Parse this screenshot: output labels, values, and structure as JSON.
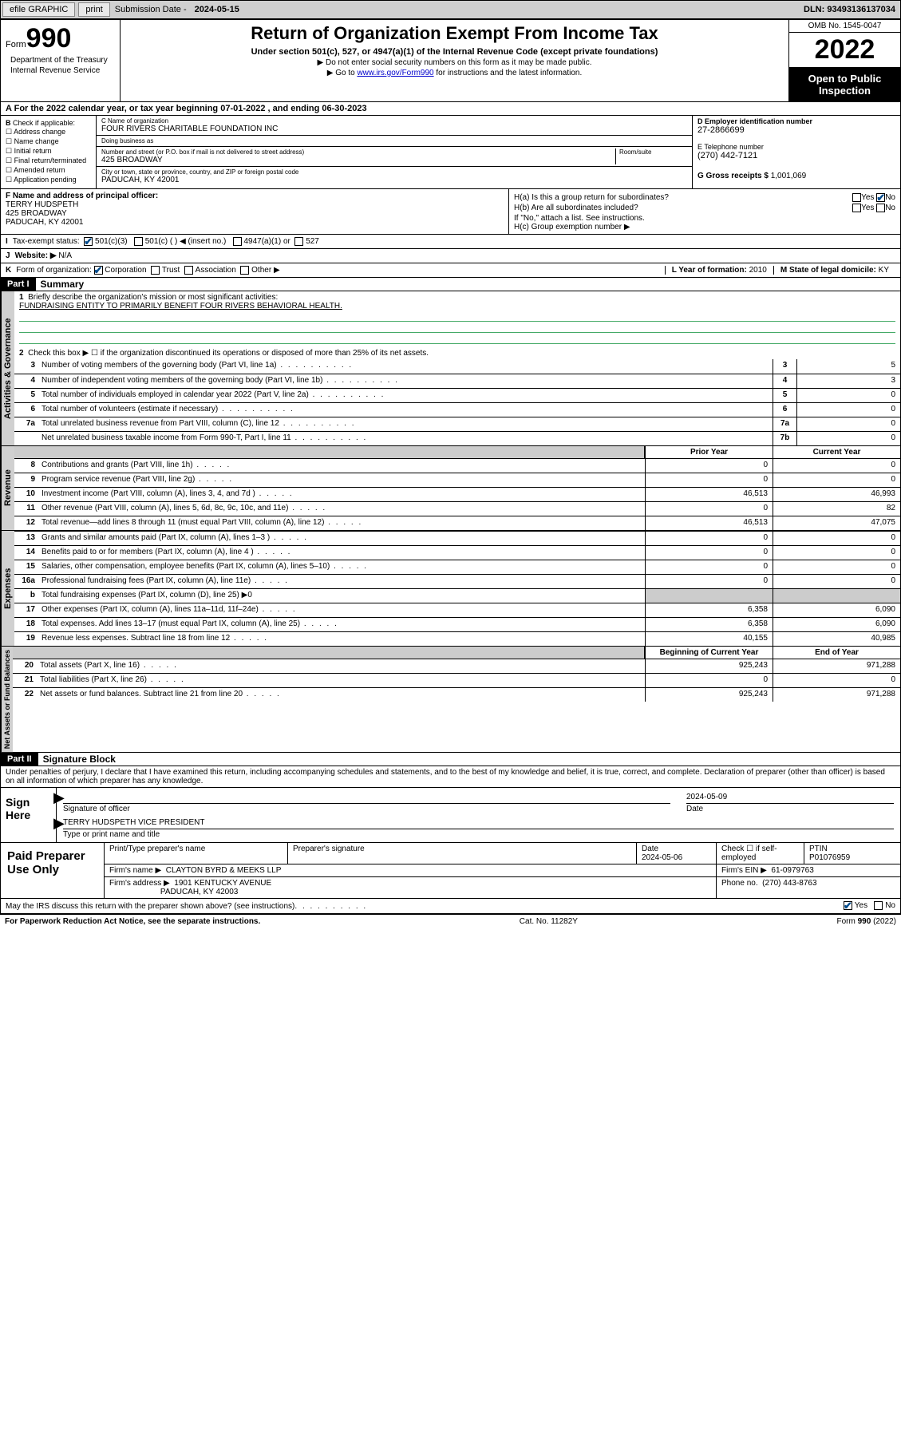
{
  "topbar": {
    "efile": "efile GRAPHIC",
    "print": "print",
    "sub_lbl": "Submission Date -",
    "sub_val": "2024-05-15",
    "dln_lbl": "DLN:",
    "dln_val": "93493136137034"
  },
  "header": {
    "form_word": "Form",
    "form_num": "990",
    "title": "Return of Organization Exempt From Income Tax",
    "subtitle": "Under section 501(c), 527, or 4947(a)(1) of the Internal Revenue Code (except private foundations)",
    "note1": "▶ Do not enter social security numbers on this form as it may be made public.",
    "note2_pre": "▶ Go to ",
    "note2_link": "www.irs.gov/Form990",
    "note2_post": " for instructions and the latest information.",
    "dept": "Department of the Treasury",
    "irs": "Internal Revenue Service",
    "omb": "OMB No. 1545-0047",
    "year": "2022",
    "otp": "Open to Public Inspection"
  },
  "rowA": {
    "text": "For the 2022 calendar year, or tax year beginning 07-01-2022   , and ending 06-30-2023",
    "lead": "A"
  },
  "boxB": {
    "lead": "B",
    "lbl": "Check if applicable:",
    "items": [
      "Address change",
      "Name change",
      "Initial return",
      "Final return/terminated",
      "Amended return",
      "Application pending"
    ]
  },
  "boxC": {
    "name_lbl": "C Name of organization",
    "name": "FOUR RIVERS CHARITABLE FOUNDATION INC",
    "dba_lbl": "Doing business as",
    "dba": "",
    "street_lbl": "Number and street (or P.O. box if mail is not delivered to street address)",
    "room_lbl": "Room/suite",
    "street": "425 BROADWAY",
    "city_lbl": "City or town, state or province, country, and ZIP or foreign postal code",
    "city": "PADUCAH, KY  42001"
  },
  "boxD": {
    "d_lbl": "D Employer identification number",
    "d_val": "27-2866699",
    "e_lbl": "E Telephone number",
    "e_val": "(270) 442-7121",
    "g_lbl": "G Gross receipts $",
    "g_val": "1,001,069"
  },
  "boxF": {
    "lbl": "F  Name and address of principal officer:",
    "name": "TERRY HUDSPETH",
    "street": "425 BROADWAY",
    "city": "PADUCAH, KY  42001"
  },
  "boxH": {
    "a_lbl": "H(a)  Is this a group return for subordinates?",
    "b_lbl": "H(b)  Are all subordinates included?",
    "b_note": "If \"No,\" attach a list. See instructions.",
    "c_lbl": "H(c)  Group exemption number ▶",
    "yes": "Yes",
    "no": "No"
  },
  "rowI": {
    "lead": "I",
    "lbl": "Tax-exempt status:",
    "a": "501(c)(3)",
    "b": "501(c) (  ) ◀ (insert no.)",
    "c": "4947(a)(1) or",
    "d": "527"
  },
  "rowJ": {
    "lead": "J",
    "lbl": "Website: ▶",
    "val": "N/A"
  },
  "rowK": {
    "lead": "K",
    "lbl": "Form of organization:",
    "opts": [
      "Corporation",
      "Trust",
      "Association",
      "Other ▶"
    ],
    "l_lbl": "L Year of formation:",
    "l_val": "2010",
    "m_lbl": "M State of legal domicile:",
    "m_val": "KY"
  },
  "part1": {
    "tag": "Part I",
    "title": "Summary",
    "q1_lbl": "Briefly describe the organization's mission or most significant activities:",
    "q1_val": "FUNDRAISING ENTITY TO PRIMARILY BENEFIT FOUR RIVERS BEHAVIORAL HEALTH.",
    "q2": "Check this box ▶ ☐  if the organization discontinued its operations or disposed of more than 25% of its net assets.",
    "hdr_prior": "Prior Year",
    "hdr_curr": "Current Year",
    "hdr_boy": "Beginning of Current Year",
    "hdr_eoy": "End of Year",
    "vtab1": "Activities & Governance",
    "vtab2": "Revenue",
    "vtab3": "Expenses",
    "vtab4": "Net Assets or Fund Balances",
    "lines_gov": [
      {
        "n": "3",
        "t": "Number of voting members of the governing body (Part VI, line 1a)",
        "box": "3",
        "v": "5"
      },
      {
        "n": "4",
        "t": "Number of independent voting members of the governing body (Part VI, line 1b)",
        "box": "4",
        "v": "3"
      },
      {
        "n": "5",
        "t": "Total number of individuals employed in calendar year 2022 (Part V, line 2a)",
        "box": "5",
        "v": "0"
      },
      {
        "n": "6",
        "t": "Total number of volunteers (estimate if necessary)",
        "box": "6",
        "v": "0"
      },
      {
        "n": "7a",
        "t": "Total unrelated business revenue from Part VIII, column (C), line 12",
        "box": "7a",
        "v": "0"
      },
      {
        "n": "",
        "t": "Net unrelated business taxable income from Form 990-T, Part I, line 11",
        "box": "7b",
        "v": "0"
      }
    ],
    "lines_rev": [
      {
        "n": "8",
        "t": "Contributions and grants (Part VIII, line 1h)",
        "p": "0",
        "c": "0"
      },
      {
        "n": "9",
        "t": "Program service revenue (Part VIII, line 2g)",
        "p": "0",
        "c": "0"
      },
      {
        "n": "10",
        "t": "Investment income (Part VIII, column (A), lines 3, 4, and 7d )",
        "p": "46,513",
        "c": "46,993"
      },
      {
        "n": "11",
        "t": "Other revenue (Part VIII, column (A), lines 5, 6d, 8c, 9c, 10c, and 11e)",
        "p": "0",
        "c": "82"
      },
      {
        "n": "12",
        "t": "Total revenue—add lines 8 through 11 (must equal Part VIII, column (A), line 12)",
        "p": "46,513",
        "c": "47,075"
      }
    ],
    "lines_exp": [
      {
        "n": "13",
        "t": "Grants and similar amounts paid (Part IX, column (A), lines 1–3 )",
        "p": "0",
        "c": "0"
      },
      {
        "n": "14",
        "t": "Benefits paid to or for members (Part IX, column (A), line 4 )",
        "p": "0",
        "c": "0"
      },
      {
        "n": "15",
        "t": "Salaries, other compensation, employee benefits (Part IX, column (A), lines 5–10)",
        "p": "0",
        "c": "0"
      },
      {
        "n": "16a",
        "t": "Professional fundraising fees (Part IX, column (A), line 11e)",
        "p": "0",
        "c": "0"
      },
      {
        "n": "b",
        "t": "Total fundraising expenses (Part IX, column (D), line 25) ▶0",
        "shade": true
      },
      {
        "n": "17",
        "t": "Other expenses (Part IX, column (A), lines 11a–11d, 11f–24e)",
        "p": "6,358",
        "c": "6,090"
      },
      {
        "n": "18",
        "t": "Total expenses. Add lines 13–17 (must equal Part IX, column (A), line 25)",
        "p": "6,358",
        "c": "6,090"
      },
      {
        "n": "19",
        "t": "Revenue less expenses. Subtract line 18 from line 12",
        "p": "40,155",
        "c": "40,985"
      }
    ],
    "lines_net": [
      {
        "n": "20",
        "t": "Total assets (Part X, line 16)",
        "p": "925,243",
        "c": "971,288"
      },
      {
        "n": "21",
        "t": "Total liabilities (Part X, line 26)",
        "p": "0",
        "c": "0"
      },
      {
        "n": "22",
        "t": "Net assets or fund balances. Subtract line 21 from line 20",
        "p": "925,243",
        "c": "971,288"
      }
    ]
  },
  "part2": {
    "tag": "Part II",
    "title": "Signature Block",
    "decl": "Under penalties of perjury, I declare that I have examined this return, including accompanying schedules and statements, and to the best of my knowledge and belief, it is true, correct, and complete. Declaration of preparer (other than officer) is based on all information of which preparer has any knowledge.",
    "sign_here": "Sign Here",
    "sig_officer": "Signature of officer",
    "sig_date_lbl": "Date",
    "sig_date": "2024-05-09",
    "officer_name": "TERRY HUDSPETH  VICE PRESIDENT",
    "name_title_lbl": "Type or print name and title",
    "paid": "Paid Preparer Use Only",
    "prep_name_lbl": "Print/Type preparer's name",
    "prep_sig_lbl": "Preparer's signature",
    "prep_date_lbl": "Date",
    "prep_date": "2024-05-06",
    "self_emp": "Check ☐ if self-employed",
    "ptin_lbl": "PTIN",
    "ptin": "P01076959",
    "firm_name_lbl": "Firm's name    ▶",
    "firm_name": "CLAYTON BYRD & MEEKS LLP",
    "firm_ein_lbl": "Firm's EIN ▶",
    "firm_ein": "61-0979763",
    "firm_addr_lbl": "Firm's address ▶",
    "firm_addr1": "1901 KENTUCKY AVENUE",
    "firm_addr2": "PADUCAH, KY  42003",
    "phone_lbl": "Phone no.",
    "phone": "(270) 443-8763",
    "discuss": "May the IRS discuss this return with the preparer shown above? (see instructions)",
    "yes": "Yes",
    "no": "No"
  },
  "footer": {
    "pra": "For Paperwork Reduction Act Notice, see the separate instructions.",
    "cat": "Cat. No. 11282Y",
    "form": "Form 990 (2022)"
  }
}
